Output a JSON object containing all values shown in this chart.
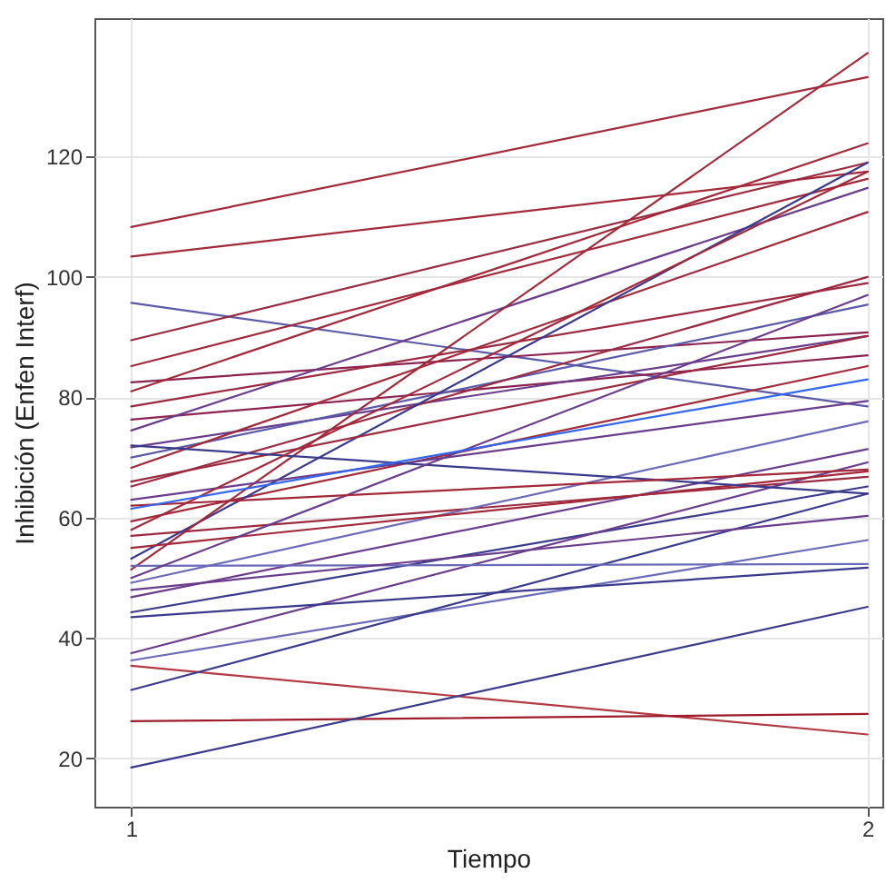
{
  "chart_data": {
    "type": "line",
    "xlabel": "Tiempo",
    "ylabel": "Inhibición (Enfen Interf)",
    "x": [
      1,
      2
    ],
    "xlim": [
      0.95,
      2.02
    ],
    "xticks": [
      1,
      2
    ],
    "ylim": [
      12,
      143
    ],
    "yticks": [
      20,
      40,
      60,
      80,
      100,
      120
    ],
    "grid": true,
    "legend": false,
    "marker": "none",
    "line_style": "solid",
    "series": [
      {
        "color": "#a3293a",
        "values": [
          108.3,
          133.2
        ]
      },
      {
        "color": "#a3293a",
        "values": [
          103.4,
          117.5
        ]
      },
      {
        "color": "#5a5aa8",
        "values": [
          95.7,
          78.5
        ]
      },
      {
        "color": "#9b2a40",
        "values": [
          89.5,
          119
        ]
      },
      {
        "color": "#a3293a",
        "values": [
          85.2,
          116.3
        ]
      },
      {
        "color": "#8b2250",
        "values": [
          82.5,
          90.8
        ]
      },
      {
        "color": "#a3293a",
        "values": [
          81,
          122.2
        ]
      },
      {
        "color": "#9b2a40",
        "values": [
          78.5,
          99
        ]
      },
      {
        "color": "#8b2250",
        "values": [
          76.3,
          87
        ]
      },
      {
        "color": "#6a3c8c",
        "values": [
          74.5,
          114.8
        ]
      },
      {
        "color": "#6a3c8c",
        "values": [
          71.7,
          90.2
        ]
      },
      {
        "color": "#5a5aa8",
        "values": [
          70,
          95.4
        ]
      },
      {
        "color": "#a3293a",
        "values": [
          68.3,
          110.8
        ]
      },
      {
        "color": "#9b2a40",
        "values": [
          65.2,
          100
        ]
      },
      {
        "color": "#a3293a",
        "values": [
          59.4,
          85.2
        ]
      },
      {
        "color": "#9b2a40",
        "values": [
          57,
          66.8
        ]
      },
      {
        "color": "#3a3a8c",
        "values": [
          53.2,
          119
        ]
      },
      {
        "color": "#a3293a",
        "values": [
          51.4,
          137.2
        ]
      },
      {
        "color": "#6a6ab8",
        "values": [
          49.2,
          76
        ]
      },
      {
        "color": "#6a3c8c",
        "values": [
          46.8,
          71.4
        ]
      },
      {
        "color": "#3a3a8c",
        "values": [
          44.3,
          65.2
        ]
      },
      {
        "color": "#6a3c8c",
        "values": [
          37.5,
          69.2
        ]
      },
      {
        "color": "#6a6ab8",
        "values": [
          36.3,
          56.3
        ]
      },
      {
        "color": "#b33a44",
        "values": [
          35.4,
          24
        ]
      },
      {
        "color": "#3a3a8c",
        "values": [
          31.4,
          64
        ]
      },
      {
        "color": "#a01c2c",
        "values": [
          26.2,
          27.4
        ]
      },
      {
        "color": "#3a3a8c",
        "values": [
          18.5,
          45.2
        ]
      },
      {
        "color": "#a3293a",
        "values": [
          55,
          67.7
        ]
      },
      {
        "color": "#6a6ab8",
        "values": [
          52,
          52.3
        ]
      },
      {
        "color": "#6a3c8c",
        "values": [
          48,
          60.3
        ]
      },
      {
        "color": "#3a3a8c",
        "values": [
          43.5,
          51.7
        ]
      },
      {
        "color": "#6a3c8c",
        "values": [
          63,
          79.4
        ]
      },
      {
        "color": "#9b2a40",
        "values": [
          66,
          90.2
        ]
      },
      {
        "color": "#3a3a8c",
        "values": [
          72,
          64
        ]
      },
      {
        "color": "#a3293a",
        "values": [
          58,
          117.5
        ]
      },
      {
        "color": "#6a3c8c",
        "values": [
          50,
          97
        ]
      },
      {
        "color": "#a3293a",
        "values": [
          62,
          68
        ]
      },
      {
        "color": "#3366ee",
        "values": [
          61.5,
          83
        ]
      }
    ]
  }
}
